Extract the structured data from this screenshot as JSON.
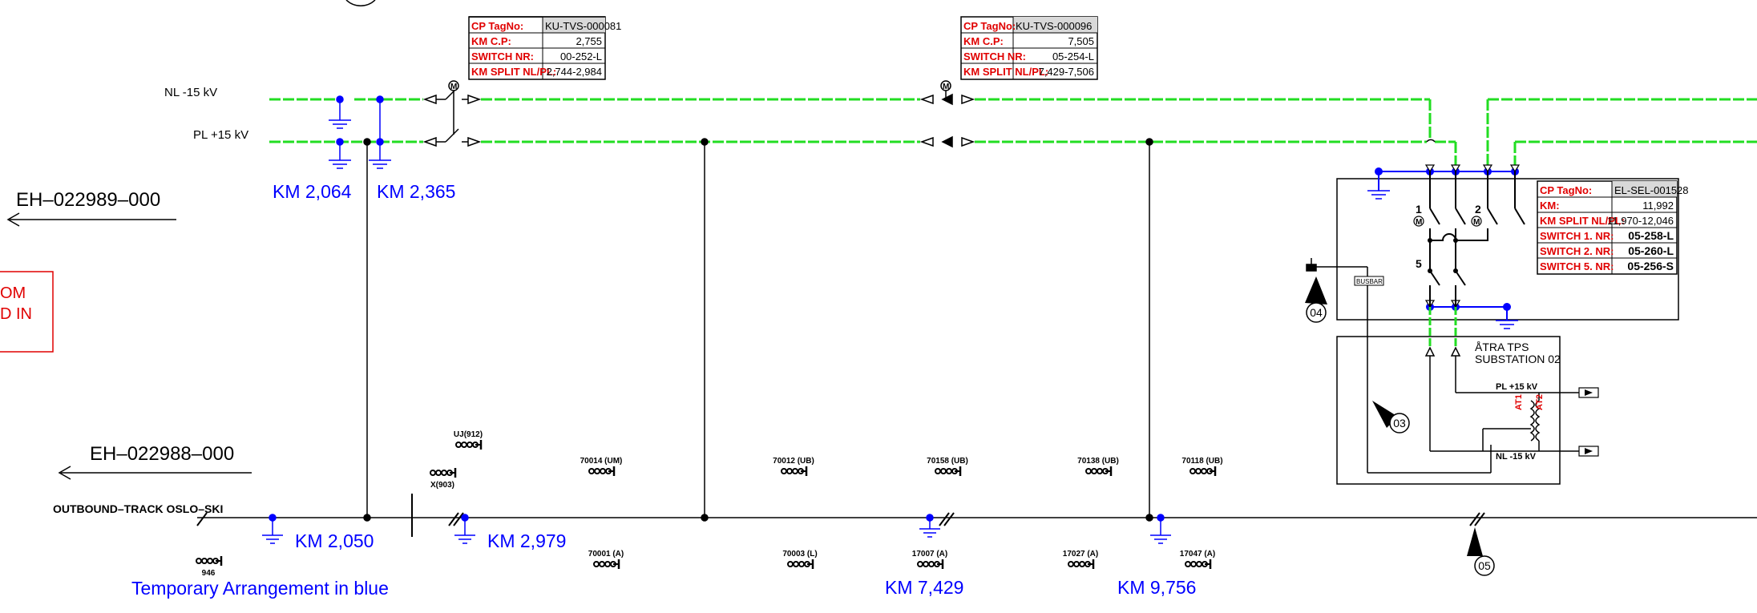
{
  "colors": {
    "busbar": "#22dd22",
    "line": "#000000",
    "temporary": "#0000ff",
    "tag_label": "#e00000",
    "tag_header_bg": "#d9d9d9"
  },
  "bus_labels": {
    "nl": "NL -15 kV",
    "pl": "PL +15 kV"
  },
  "references": {
    "ref1": "EH–022989–000",
    "ref2": "EH–022988–000"
  },
  "clipped_text": {
    "line1": "OM",
    "line2": "D IN"
  },
  "track_label": "OUTBOUND–TRACK OSLO–SKI",
  "temporary_note": "Temporary Arrangement in blue",
  "km_markers": {
    "k2064": "KM 2,064",
    "k2365": "KM 2,365",
    "k2050": "KM 2,050",
    "k2979": "KM 2,979",
    "k7429": "KM 7,429",
    "k9756": "KM 9,756"
  },
  "tag_boxes": {
    "cp1": {
      "labels": [
        "CP TagNo:",
        "KM C.P:",
        "SWITCH NR:",
        "KM SPLIT NL/PL:"
      ],
      "values": [
        "KU-TVS-000081",
        "2,755",
        "00-252-L",
        "2,744-2,984"
      ]
    },
    "cp2": {
      "labels": [
        "CP TagNo:",
        "KM C.P:",
        "SWITCH NR:",
        "KM SPLIT NL/PL:"
      ],
      "values": [
        "KU-TVS-000096",
        "7,505",
        "05-254-L",
        "7,429-7,506"
      ]
    },
    "sel": {
      "labels": [
        "CP TagNo:",
        "KM:",
        "KM SPLIT NL/PL:",
        "SWITCH 1. NR:",
        "SWITCH 2. NR:",
        "SWITCH 5. NR:"
      ],
      "values": [
        "EL-SEL-001528",
        "11,992",
        "11,970-12,046",
        "05-258-L",
        "05-260-L",
        "05-256-S"
      ]
    }
  },
  "substation": {
    "name_line1": "ÅTRA TPS",
    "name_line2": "SUBSTATION 02",
    "pl_label": "PL +15 kV",
    "nl_label": "NL -15 kV",
    "at1": "AT1",
    "at2": "AT2",
    "busbar_tag": "BUSBAR"
  },
  "switch_numbers": {
    "s1": "1",
    "s2": "2",
    "s5": "5"
  },
  "motor_symbol": "M",
  "callouts": {
    "c03": "03",
    "c04": "04",
    "c05": "05"
  },
  "signals_top": [
    {
      "id": "sig-uj912",
      "label": "UJ(912)"
    },
    {
      "id": "sig-x903",
      "label": "X(903)"
    },
    {
      "id": "sig-70014",
      "label": "70014 (UM)"
    },
    {
      "id": "sig-70012",
      "label": "70012 (UB)"
    },
    {
      "id": "sig-70158",
      "label": "70158 (UB)"
    },
    {
      "id": "sig-70138",
      "label": "70138 (UB)"
    },
    {
      "id": "sig-70118",
      "label": "70118 (UB)"
    }
  ],
  "signals_bottom": [
    {
      "id": "sig-946",
      "label": "946"
    },
    {
      "id": "sig-70001",
      "label": "70001 (A)"
    },
    {
      "id": "sig-70003",
      "label": "70003 (L)"
    },
    {
      "id": "sig-17007",
      "label": "17007 (A)"
    },
    {
      "id": "sig-17027",
      "label": "17027 (A)"
    },
    {
      "id": "sig-17047",
      "label": "17047 (A)"
    }
  ]
}
